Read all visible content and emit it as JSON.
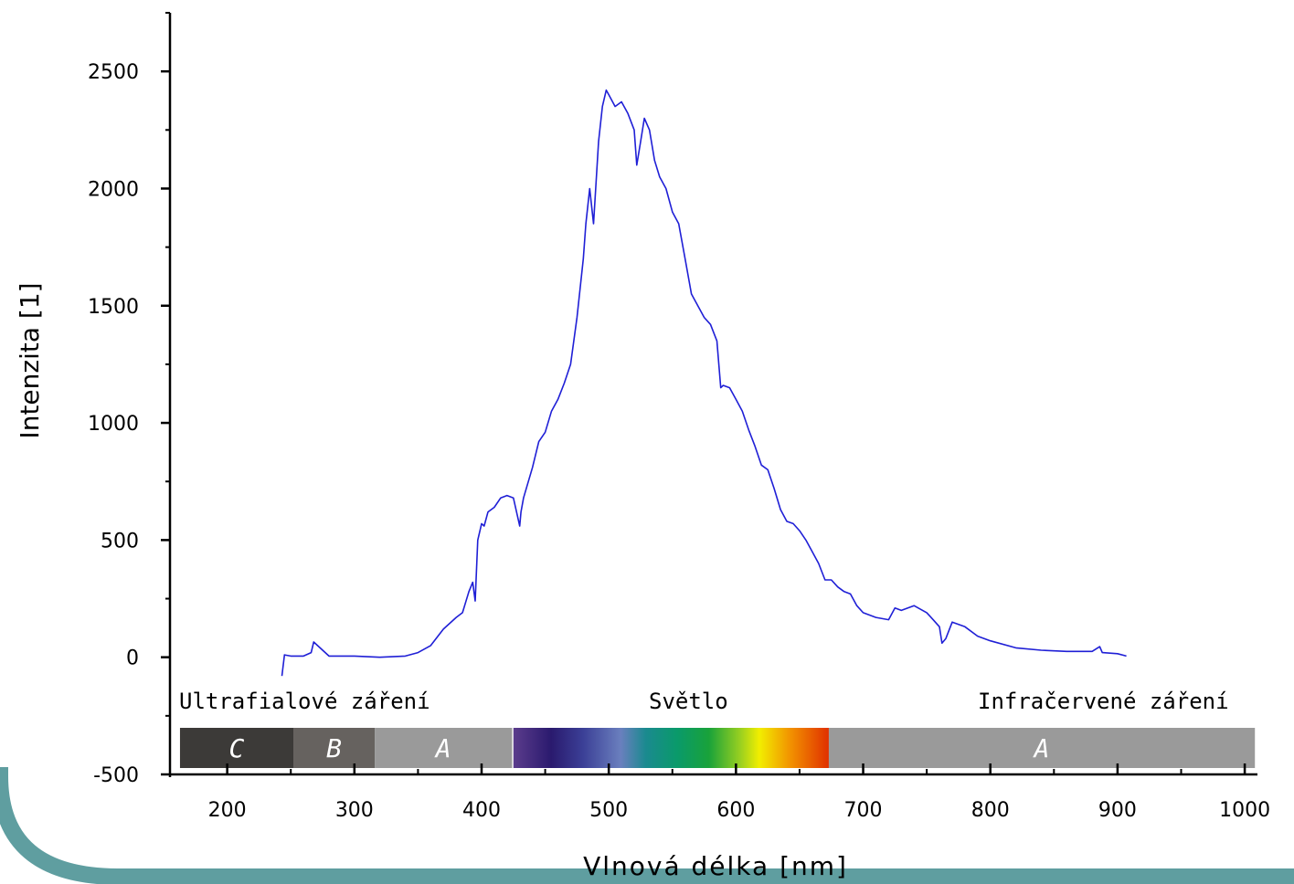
{
  "colors": {
    "frame": "#5f9ea0",
    "series": "#1f1fd6",
    "axis": "#000000",
    "uvc": "#3c3a38",
    "uvb": "#66625f",
    "uva": "#9a9a9a",
    "ira": "#9a9a9a"
  },
  "bands": {
    "uv_caption": "Ultrafialové záření",
    "visible_caption": "Světlo",
    "ir_caption": "Infračervené záření",
    "segments": [
      {
        "letter": "C",
        "from": 160,
        "to": 252,
        "color": "#3c3a38"
      },
      {
        "letter": "B",
        "from": 252,
        "to": 316,
        "color": "#66625f"
      },
      {
        "letter": "A",
        "from": 316,
        "to": 424,
        "color": "#9a9a9a"
      },
      {
        "letter": "",
        "from": 425,
        "to": 673,
        "color": "spectrum"
      },
      {
        "letter": "A",
        "from": 673,
        "to": 1008,
        "color": "#9a9a9a"
      }
    ]
  },
  "chart_data": {
    "type": "line",
    "title": "",
    "xlabel": "Vlnová délka [nm]",
    "ylabel": "Intenzita [1]",
    "xlim": [
      155,
      1010
    ],
    "ylim": [
      -500,
      2750
    ],
    "xticks": [
      200,
      300,
      400,
      500,
      600,
      700,
      800,
      900,
      1000
    ],
    "yticks": [
      -500,
      0,
      500,
      1000,
      1500,
      2000,
      2500
    ],
    "grid": false,
    "series": [
      {
        "x": [
          243,
          245,
          250,
          260,
          266,
          268,
          280,
          300,
          320,
          340,
          350,
          360,
          370,
          380,
          385,
          390,
          393,
          395,
          397,
          400,
          402,
          405,
          410,
          415,
          420,
          425,
          430,
          431,
          433,
          440,
          445,
          450,
          455,
          460,
          465,
          470,
          475,
          480,
          482,
          485,
          488,
          492,
          495,
          498,
          500,
          505,
          510,
          515,
          520,
          522,
          525,
          528,
          532,
          536,
          540,
          545,
          550,
          555,
          560,
          565,
          570,
          575,
          580,
          585,
          588,
          590,
          595,
          600,
          605,
          610,
          615,
          620,
          625,
          630,
          635,
          640,
          645,
          650,
          655,
          660,
          665,
          670,
          675,
          680,
          685,
          690,
          695,
          700,
          710,
          720,
          725,
          730,
          740,
          750,
          755,
          760,
          762,
          765,
          770,
          780,
          790,
          800,
          820,
          840,
          860,
          880,
          886,
          888,
          900,
          907
        ],
        "y": [
          -80,
          10,
          5,
          5,
          20,
          65,
          5,
          5,
          0,
          5,
          20,
          50,
          120,
          170,
          190,
          280,
          320,
          240,
          500,
          570,
          560,
          620,
          640,
          680,
          690,
          680,
          560,
          620,
          680,
          810,
          920,
          960,
          1050,
          1100,
          1170,
          1250,
          1450,
          1700,
          1850,
          2000,
          1850,
          2200,
          2350,
          2420,
          2400,
          2350,
          2370,
          2320,
          2250,
          2100,
          2200,
          2300,
          2250,
          2120,
          2050,
          2000,
          1900,
          1850,
          1700,
          1550,
          1500,
          1450,
          1420,
          1350,
          1150,
          1160,
          1150,
          1100,
          1050,
          970,
          900,
          820,
          800,
          720,
          630,
          580,
          570,
          540,
          500,
          450,
          400,
          330,
          330,
          300,
          280,
          270,
          220,
          190,
          170,
          160,
          210,
          200,
          220,
          190,
          160,
          130,
          60,
          80,
          150,
          130,
          90,
          70,
          40,
          30,
          25,
          25,
          45,
          20,
          15,
          5
        ]
      }
    ]
  }
}
